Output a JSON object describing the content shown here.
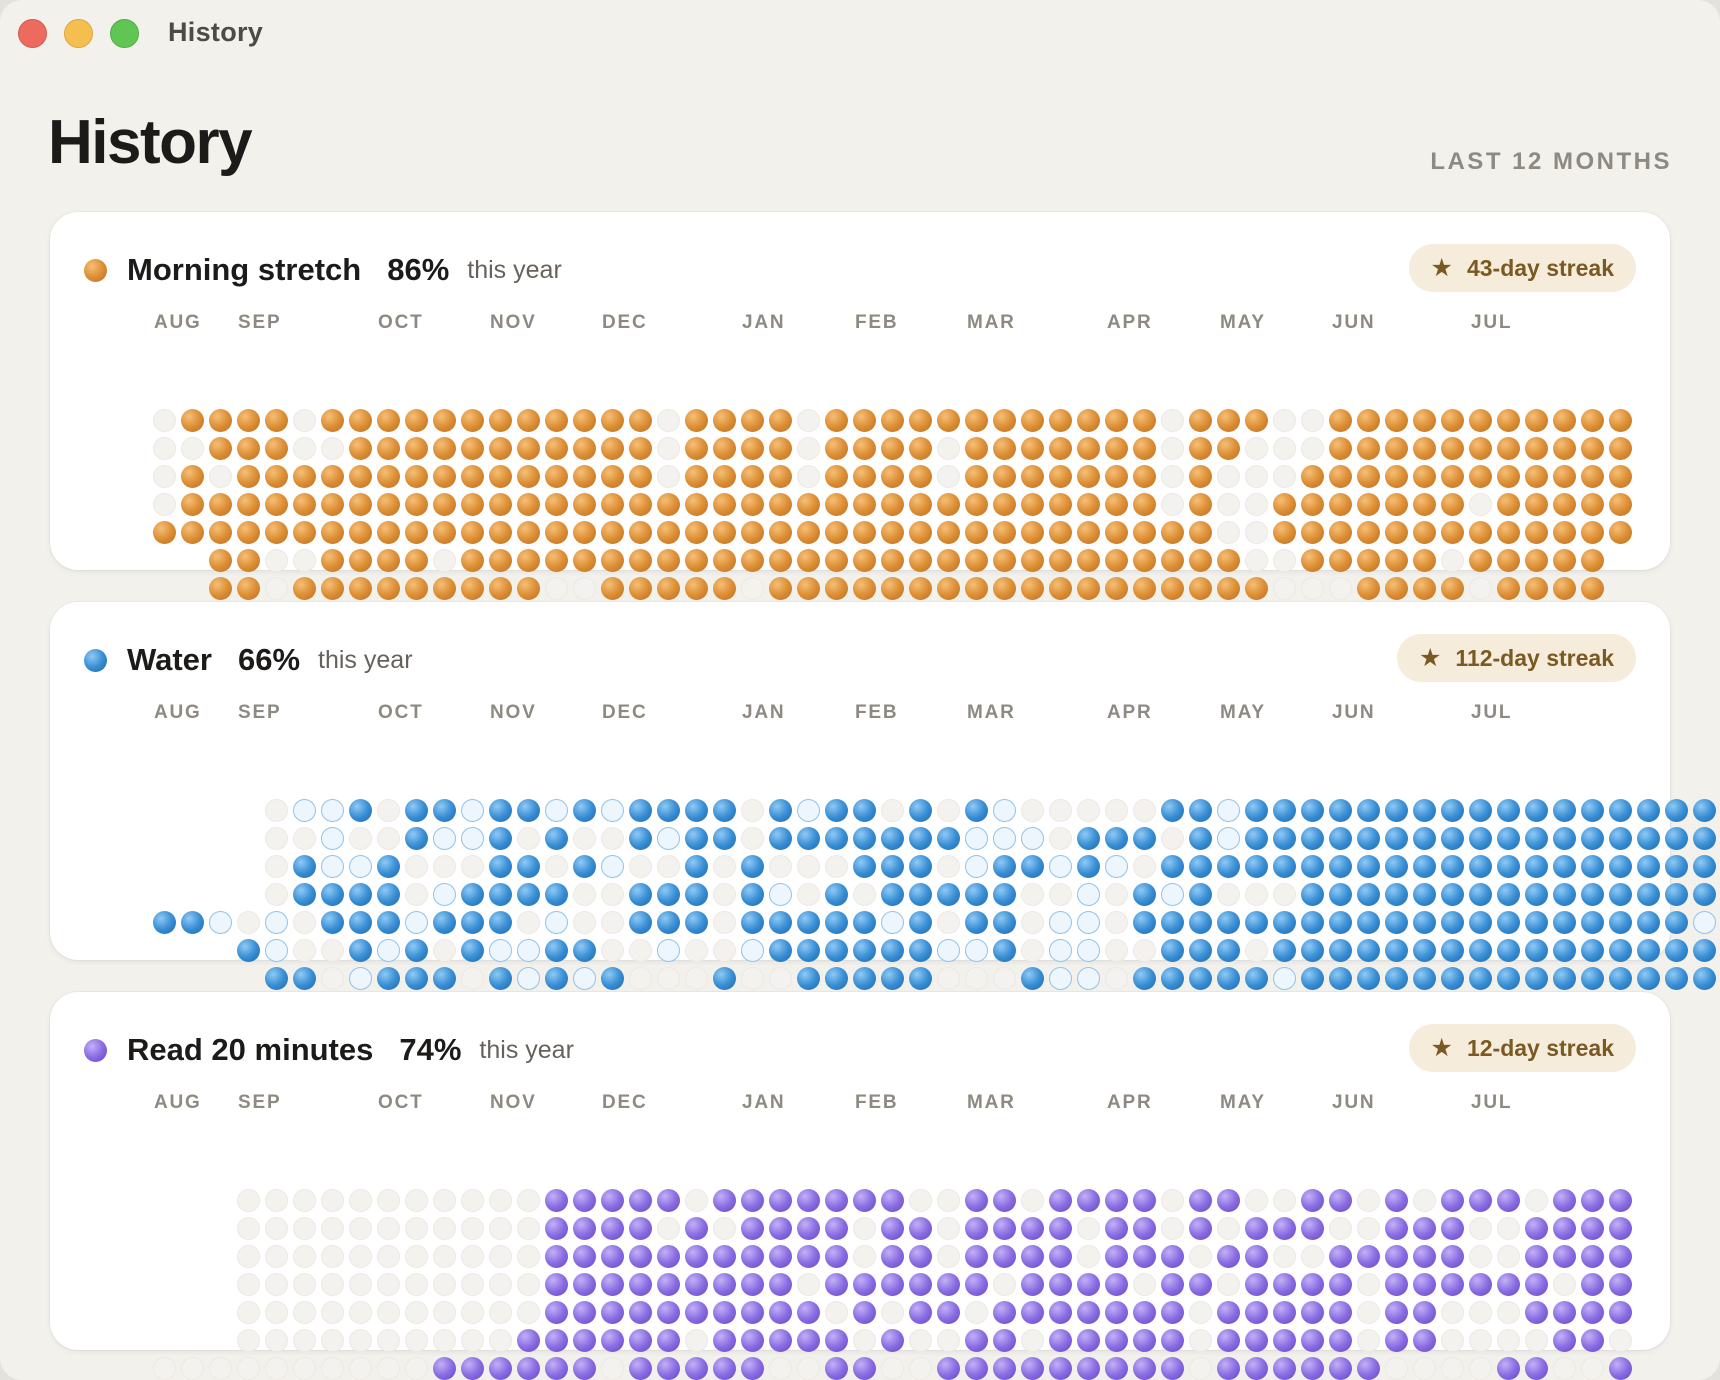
{
  "window": {
    "title": "History"
  },
  "header": {
    "title": "History",
    "range": "LAST 12 MONTHS"
  },
  "colors": {
    "orange": "#dc8f36",
    "blue": "#3a8fd4",
    "purple": "#8a6de2",
    "streak_bg": "#f5ecdc",
    "streak_text": "#7a5a22"
  },
  "months": [
    "AUG",
    "SEP",
    "OCT",
    "NOV",
    "DEC",
    "JAN",
    "FEB",
    "MAR",
    "APR",
    "MAY",
    "JUN",
    "JUL"
  ],
  "habits": [
    {
      "name": "Morning stretch",
      "percent": "86%",
      "period": "this year",
      "streak": "43-day streak",
      "color": "orange",
      "icon": "star-icon",
      "grid": [
        "01111011111111111101111011111111111101110011111111111",
        "00111001111111111101111011110111111101100011111111111",
        "01011111111111111101111011110111111101000111111111111",
        "01111111111111111111111111111111111101001111111011111",
        "11111111111111111111111111111111111111001111111111111",
        "11001111011111111111111111111111111110011111011111",
        "11011111111100111110111111111111111111000111101111"
      ]
    },
    {
      "name": "Water",
      "percent": "66%",
      "period": "this year",
      "streak": "112-day streak",
      "color": "blue",
      "icon": "star-icon",
      "grid": [
        "0221011211212111101211010120000011211111111111111111",
        "0020012210100121101111111222011101211111111111111111",
        "0122100011012001010001110211212011111111111111111111",
        "0111102111100111012010111110020121000111111111111111",
        "11202011121110200111011111210110220111111111111111111112",
        "12001210122110020021111112210220011101111111111111111",
        "1102111012121000100111110001220111112111111111111111"
      ]
    },
    {
      "name": "Read 20 minutes",
      "percent": "74%",
      "period": "this year",
      "streak": "12-day streak",
      "color": "purple",
      "icon": "star-icon",
      "grid": [
        "00000000000111110111111100110111101100110101110111",
        "00000000000111101011110110111101101011100111001111",
        "00000000000111111111110110111101110110011111001111",
        "00000000000111111111011111101111011011110111111011",
        "00000000000111111111101011011111110111110110001111",
        "00000000001111110111110100110111110111110110000110",
        "00000000001111110111110011001111111110111111000011001"
      ]
    }
  ]
}
